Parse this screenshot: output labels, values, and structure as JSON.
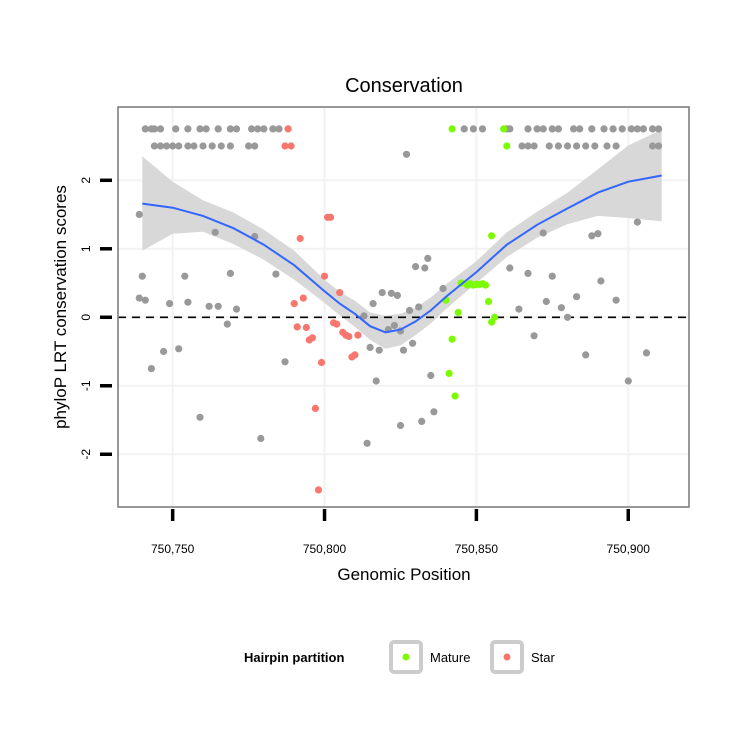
{
  "chart_data": {
    "type": "scatter",
    "title": "Conservation",
    "xlabel": "Genomic Position",
    "ylabel": "phyloP LRT conservation scores",
    "xlim": [
      750732,
      750920
    ],
    "ylim": [
      -2.77,
      3.07
    ],
    "x_ticks": [
      750750,
      750800,
      750850,
      750900
    ],
    "x_tick_labels": [
      "750,750",
      "750,800",
      "750,850",
      "750,900"
    ],
    "y_ticks": [
      -2,
      -1,
      0,
      1,
      2
    ],
    "y_tick_labels": [
      "-2",
      "-1",
      "0",
      "1",
      "2"
    ],
    "reference_line": {
      "y": 0,
      "style": "dashed"
    },
    "legend": {
      "title": "Hairpin partition",
      "entries": [
        {
          "label": "Mature",
          "color": "#7CFC00"
        },
        {
          "label": "Star",
          "color": "#F8766D"
        }
      ]
    },
    "colors": {
      "other": "#999999",
      "Mature": "#7CFC00",
      "Star": "#F8766D",
      "smooth": "#3366FF",
      "band": "#d4d4d4",
      "panel_border": "#7f7f7f",
      "grid": "#f2f2f2"
    },
    "smooth": {
      "x": [
        750740,
        750750,
        750760,
        750770,
        750780,
        750790,
        750800,
        750805,
        750810,
        750815,
        750820,
        750825,
        750830,
        750835,
        750840,
        750845,
        750850,
        750855,
        750860,
        750870,
        750880,
        750890,
        750900,
        750911
      ],
      "y": [
        1.66,
        1.6,
        1.48,
        1.3,
        1.06,
        0.76,
        0.38,
        0.2,
        0.05,
        -0.13,
        -0.22,
        -0.18,
        -0.06,
        0.1,
        0.3,
        0.48,
        0.66,
        0.86,
        1.06,
        1.35,
        1.59,
        1.82,
        1.98,
        2.07
      ],
      "lo": [
        0.97,
        1.22,
        1.25,
        1.07,
        0.84,
        0.55,
        0.21,
        0.03,
        -0.14,
        -0.33,
        -0.46,
        -0.41,
        -0.26,
        -0.09,
        0.12,
        0.31,
        0.5,
        0.69,
        0.88,
        1.16,
        1.36,
        1.48,
        1.45,
        1.4
      ],
      "hi": [
        2.35,
        1.98,
        1.71,
        1.53,
        1.28,
        0.97,
        0.55,
        0.37,
        0.24,
        0.07,
        0.02,
        0.05,
        0.14,
        0.29,
        0.48,
        0.65,
        0.82,
        1.03,
        1.24,
        1.54,
        1.82,
        2.16,
        2.51,
        2.74
      ]
    },
    "series": [
      {
        "name": "Other",
        "points": [
          [
            750741,
            2.75
          ],
          [
            750743,
            2.75
          ],
          [
            750744,
            2.75
          ],
          [
            750746,
            2.75
          ],
          [
            750751,
            2.75
          ],
          [
            750755,
            2.75
          ],
          [
            750759,
            2.75
          ],
          [
            750761,
            2.75
          ],
          [
            750765,
            2.75
          ],
          [
            750769,
            2.75
          ],
          [
            750771,
            2.75
          ],
          [
            750776,
            2.75
          ],
          [
            750778,
            2.75
          ],
          [
            750780,
            2.75
          ],
          [
            750783,
            2.75
          ],
          [
            750785,
            2.75
          ],
          [
            750846,
            2.75
          ],
          [
            750849,
            2.75
          ],
          [
            750852,
            2.75
          ],
          [
            750860,
            2.75
          ],
          [
            750861,
            2.75
          ],
          [
            750867,
            2.75
          ],
          [
            750870,
            2.75
          ],
          [
            750872,
            2.75
          ],
          [
            750875,
            2.75
          ],
          [
            750877,
            2.75
          ],
          [
            750882,
            2.75
          ],
          [
            750884,
            2.75
          ],
          [
            750888,
            2.75
          ],
          [
            750892,
            2.75
          ],
          [
            750895,
            2.75
          ],
          [
            750898,
            2.75
          ],
          [
            750901,
            2.75
          ],
          [
            750903,
            2.75
          ],
          [
            750905,
            2.75
          ],
          [
            750908,
            2.75
          ],
          [
            750910,
            2.75
          ],
          [
            750744,
            2.5
          ],
          [
            750746,
            2.5
          ],
          [
            750748,
            2.5
          ],
          [
            750750,
            2.5
          ],
          [
            750752,
            2.5
          ],
          [
            750755,
            2.5
          ],
          [
            750757,
            2.5
          ],
          [
            750760,
            2.5
          ],
          [
            750763,
            2.5
          ],
          [
            750766,
            2.5
          ],
          [
            750769,
            2.5
          ],
          [
            750775,
            2.5
          ],
          [
            750777,
            2.5
          ],
          [
            750865,
            2.5
          ],
          [
            750867,
            2.5
          ],
          [
            750869,
            2.5
          ],
          [
            750874,
            2.5
          ],
          [
            750877,
            2.5
          ],
          [
            750880,
            2.5
          ],
          [
            750883,
            2.5
          ],
          [
            750886,
            2.5
          ],
          [
            750889,
            2.5
          ],
          [
            750893,
            2.5
          ],
          [
            750896,
            2.5
          ],
          [
            750908,
            2.5
          ],
          [
            750910,
            2.5
          ],
          [
            750739,
            1.5
          ],
          [
            750740,
            0.6
          ],
          [
            750741,
            0.25
          ],
          [
            750739,
            0.28
          ],
          [
            750743,
            -0.75
          ],
          [
            750747,
            -0.5
          ],
          [
            750749,
            0.2
          ],
          [
            750752,
            -0.46
          ],
          [
            750754,
            0.6
          ],
          [
            750755,
            0.22
          ],
          [
            750759,
            -1.46
          ],
          [
            750762,
            0.16
          ],
          [
            750764,
            1.24
          ],
          [
            750765,
            0.16
          ],
          [
            750768,
            -0.1
          ],
          [
            750769,
            0.64
          ],
          [
            750771,
            0.12
          ],
          [
            750777,
            1.18
          ],
          [
            750779,
            -1.77
          ],
          [
            750784,
            0.63
          ],
          [
            750787,
            -0.65
          ],
          [
            750813,
            0.02
          ],
          [
            750814,
            -1.84
          ],
          [
            750815,
            -0.44
          ],
          [
            750816,
            0.2
          ],
          [
            750817,
            -0.93
          ],
          [
            750818,
            -0.48
          ],
          [
            750819,
            0.36
          ],
          [
            750821,
            -0.18
          ],
          [
            750822,
            0.35
          ],
          [
            750823,
            -0.12
          ],
          [
            750824,
            0.32
          ],
          [
            750825,
            -0.2
          ],
          [
            750825,
            -1.58
          ],
          [
            750826,
            -0.48
          ],
          [
            750827,
            2.38
          ],
          [
            750828,
            0.1
          ],
          [
            750829,
            -0.38
          ],
          [
            750830,
            0.74
          ],
          [
            750831,
            0.15
          ],
          [
            750832,
            -1.52
          ],
          [
            750833,
            0.72
          ],
          [
            750834,
            0.86
          ],
          [
            750835,
            -0.85
          ],
          [
            750836,
            -1.38
          ],
          [
            750839,
            0.42
          ],
          [
            750861,
            0.72
          ],
          [
            750864,
            0.12
          ],
          [
            750867,
            0.64
          ],
          [
            750869,
            -0.27
          ],
          [
            750872,
            1.23
          ],
          [
            750873,
            0.23
          ],
          [
            750875,
            0.6
          ],
          [
            750878,
            0.14
          ],
          [
            750880,
            0.0
          ],
          [
            750883,
            0.3
          ],
          [
            750886,
            -0.55
          ],
          [
            750888,
            1.19
          ],
          [
            750890,
            1.22
          ],
          [
            750891,
            0.53
          ],
          [
            750896,
            0.25
          ],
          [
            750900,
            -0.93
          ],
          [
            750903,
            1.39
          ],
          [
            750906,
            -0.52
          ]
        ]
      },
      {
        "name": "Mature",
        "points": [
          [
            750842,
            2.75
          ],
          [
            750859,
            2.75
          ],
          [
            750860,
            2.5
          ],
          [
            750855,
            1.19
          ],
          [
            750840,
            0.25
          ],
          [
            750842,
            -0.32
          ],
          [
            750841,
            -0.82
          ],
          [
            750843,
            -1.15
          ],
          [
            750844,
            0.07
          ],
          [
            750845,
            0.5
          ],
          [
            750847,
            0.47
          ],
          [
            750848,
            0.49
          ],
          [
            750849,
            0.47
          ],
          [
            750850,
            0.48
          ],
          [
            750851,
            0.48
          ],
          [
            750852,
            0.49
          ],
          [
            750853,
            0.47
          ],
          [
            750854,
            0.23
          ],
          [
            750855,
            -0.07
          ],
          [
            750856,
            0.0
          ]
        ]
      },
      {
        "name": "Star",
        "points": [
          [
            750788,
            2.75
          ],
          [
            750787,
            2.5
          ],
          [
            750789,
            2.5
          ],
          [
            750790,
            0.2
          ],
          [
            750791,
            -0.14
          ],
          [
            750792,
            1.15
          ],
          [
            750793,
            0.28
          ],
          [
            750794,
            -0.15
          ],
          [
            750795,
            -0.33
          ],
          [
            750796,
            -0.3
          ],
          [
            750797,
            -1.33
          ],
          [
            750798,
            -2.52
          ],
          [
            750799,
            -0.66
          ],
          [
            750800,
            0.6
          ],
          [
            750801,
            1.46
          ],
          [
            750802,
            1.46
          ],
          [
            750803,
            -0.08
          ],
          [
            750804,
            -0.1
          ],
          [
            750805,
            0.36
          ],
          [
            750806,
            -0.22
          ],
          [
            750807,
            -0.26
          ],
          [
            750808,
            -0.28
          ],
          [
            750809,
            -0.58
          ],
          [
            750810,
            -0.55
          ],
          [
            750811,
            -0.26
          ]
        ]
      }
    ]
  }
}
